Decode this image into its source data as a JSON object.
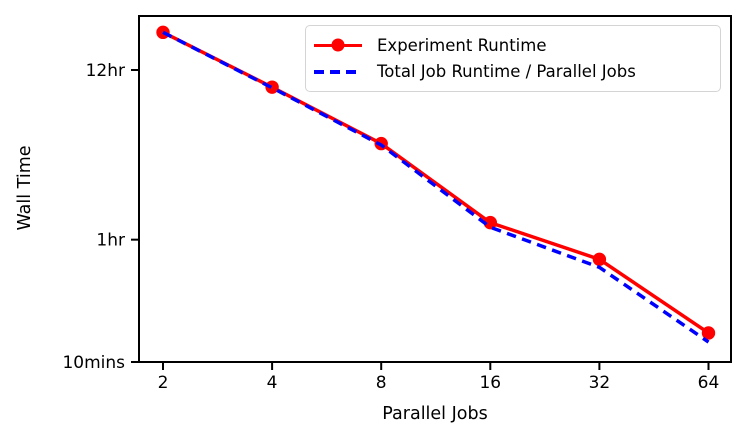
{
  "chart_data": {
    "type": "line",
    "title": "",
    "xlabel": "Parallel Jobs",
    "ylabel": "Wall Time",
    "x_scale": "log2",
    "y_scale": "log",
    "grid": false,
    "legend_position": "upper right",
    "x": [
      2,
      4,
      8,
      16,
      32,
      64
    ],
    "x_tick_labels": [
      "2",
      "4",
      "8",
      "16",
      "32",
      "64"
    ],
    "y_ticks": [
      {
        "label": "12hr",
        "minutes": 720
      },
      {
        "label": "1hr",
        "minutes": 60
      },
      {
        "label": "10mins",
        "minutes": 10
      }
    ],
    "series": [
      {
        "name": "Experiment Runtime",
        "color": "#ff0000",
        "style": "solid",
        "marker": "circle",
        "values_minutes": [
          1250,
          560,
          245,
          77,
          45,
          15.3
        ]
      },
      {
        "name": "Total Job Runtime / Parallel Jobs",
        "color": "#0000ff",
        "style": "dashed",
        "marker": "none",
        "values_minutes": [
          1250,
          555,
          240,
          72,
          40,
          13.4
        ]
      }
    ]
  }
}
